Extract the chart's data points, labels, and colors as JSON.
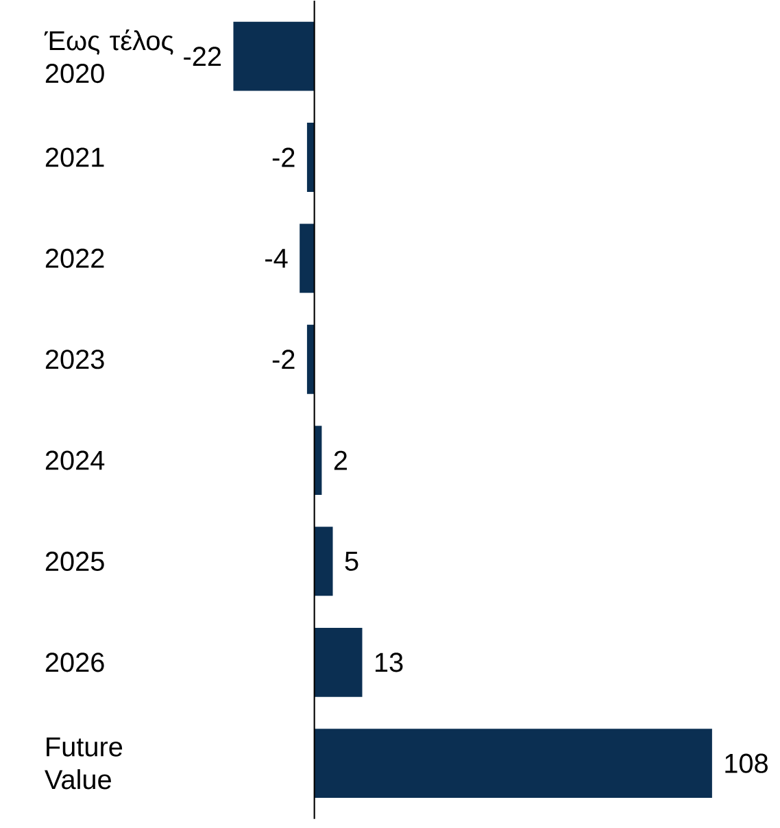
{
  "chart_data": {
    "type": "bar",
    "orientation": "horizontal",
    "categories": [
      "Έως τέλος 2020",
      "2021",
      "2022",
      "2023",
      "2024",
      "2025",
      "2026",
      "Future Value"
    ],
    "values": [
      -22,
      -2,
      -4,
      -2,
      2,
      5,
      13,
      108
    ],
    "color": "#0b2f52",
    "data_labels": true
  }
}
